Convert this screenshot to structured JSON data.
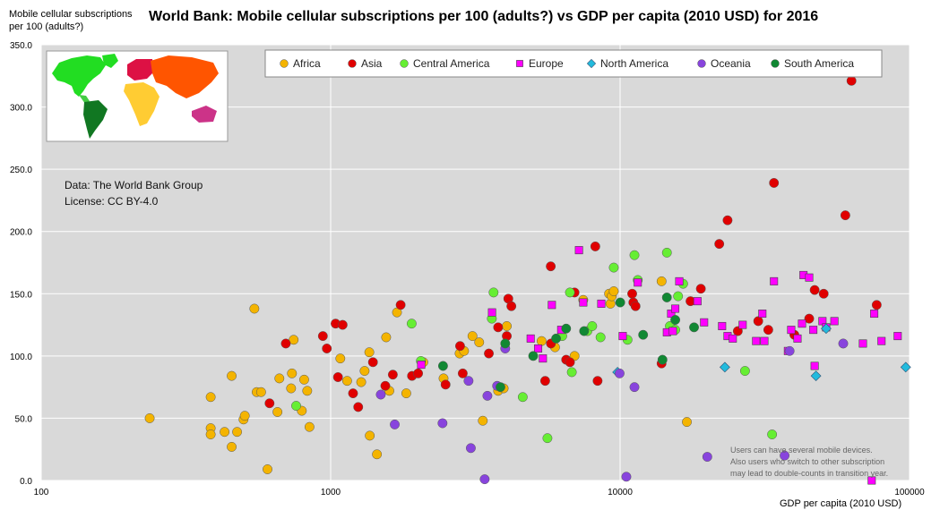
{
  "chart_data": {
    "type": "scatter",
    "title": "World Bank: Mobile cellular subscriptions per 100 (adults?) vs GDP per capita (2010 USD) for 2016",
    "ylabel_line1": "Mobile cellular subscriptions",
    "ylabel_line2": "per 100 (adults?)",
    "xlabel": "GDP per capita (2010 USD)",
    "xscale": "log",
    "xlim": [
      100,
      100000
    ],
    "ylim": [
      0,
      350
    ],
    "grid": true,
    "legend_placement": "top",
    "x_ticks": [
      {
        "value": 100,
        "label": "100"
      },
      {
        "value": 1000,
        "label": "1000"
      },
      {
        "value": 10000,
        "label": "10000"
      },
      {
        "value": 100000,
        "label": "100000"
      }
    ],
    "y_ticks": [
      {
        "value": 0,
        "label": "0.0"
      },
      {
        "value": 50,
        "label": "50.0"
      },
      {
        "value": 100,
        "label": "100.0"
      },
      {
        "value": 150,
        "label": "150.0"
      },
      {
        "value": 200,
        "label": "200.0"
      },
      {
        "value": 250,
        "label": "250.0"
      },
      {
        "value": 300,
        "label": "300.0"
      },
      {
        "value": 350,
        "label": "350.0"
      }
    ],
    "source_lines": [
      "Data: The World Bank Group",
      "License: CC BY-4.0"
    ],
    "note_lines": [
      "Users can have several mobile devices.",
      "Also users who switch to other subscription",
      "may lead to double-counts in transition year."
    ],
    "series": [
      {
        "name": "Africa",
        "color": "#f4b400",
        "marker": "circle",
        "points": [
          [
            237,
            50
          ],
          [
            385,
            67
          ],
          [
            385,
            42
          ],
          [
            385,
            37
          ],
          [
            430,
            39
          ],
          [
            455,
            84
          ],
          [
            455,
            27
          ],
          [
            475,
            39
          ],
          [
            500,
            49
          ],
          [
            505,
            52
          ],
          [
            545,
            138
          ],
          [
            555,
            71
          ],
          [
            575,
            71
          ],
          [
            605,
            9
          ],
          [
            655,
            55
          ],
          [
            665,
            82
          ],
          [
            730,
            74
          ],
          [
            735,
            86
          ],
          [
            745,
            113
          ],
          [
            795,
            56
          ],
          [
            810,
            81
          ],
          [
            830,
            72
          ],
          [
            845,
            43
          ],
          [
            1080,
            98
          ],
          [
            1140,
            80
          ],
          [
            1275,
            79
          ],
          [
            1310,
            88
          ],
          [
            1360,
            103
          ],
          [
            1365,
            36
          ],
          [
            1445,
            21
          ],
          [
            1555,
            115
          ],
          [
            1595,
            72
          ],
          [
            1695,
            135
          ],
          [
            1825,
            70
          ],
          [
            2090,
            95
          ],
          [
            2455,
            82
          ],
          [
            2790,
            102
          ],
          [
            2890,
            104
          ],
          [
            3090,
            116
          ],
          [
            3260,
            111
          ],
          [
            3355,
            48
          ],
          [
            3790,
            72
          ],
          [
            3960,
            74
          ],
          [
            4060,
            124
          ],
          [
            5355,
            112
          ],
          [
            5960,
            107
          ],
          [
            6960,
            100
          ],
          [
            7460,
            145
          ],
          [
            9160,
            150
          ],
          [
            9260,
            142
          ],
          [
            9360,
            148
          ],
          [
            9510,
            152
          ],
          [
            13910,
            160
          ],
          [
            17010,
            47
          ]
        ]
      },
      {
        "name": "Asia",
        "color": "#e00000",
        "marker": "circle",
        "points": [
          [
            615,
            62
          ],
          [
            700,
            110
          ],
          [
            940,
            116
          ],
          [
            970,
            106
          ],
          [
            1040,
            126
          ],
          [
            1060,
            83
          ],
          [
            1100,
            125
          ],
          [
            1195,
            70
          ],
          [
            1245,
            59
          ],
          [
            1400,
            95
          ],
          [
            1545,
            76
          ],
          [
            1640,
            85
          ],
          [
            1745,
            141
          ],
          [
            1910,
            84
          ],
          [
            2005,
            86
          ],
          [
            2495,
            77
          ],
          [
            2800,
            108
          ],
          [
            2860,
            86
          ],
          [
            3520,
            102
          ],
          [
            3790,
            123
          ],
          [
            4060,
            116
          ],
          [
            4110,
            146
          ],
          [
            4210,
            140
          ],
          [
            5510,
            80
          ],
          [
            5760,
            172
          ],
          [
            5770,
            110
          ],
          [
            6510,
            97
          ],
          [
            6710,
            95
          ],
          [
            6960,
            151
          ],
          [
            8210,
            188
          ],
          [
            8360,
            80
          ],
          [
            11010,
            150
          ],
          [
            11110,
            143
          ],
          [
            11310,
            140
          ],
          [
            13910,
            94
          ],
          [
            17510,
            144
          ],
          [
            19010,
            154
          ],
          [
            22010,
            190
          ],
          [
            23510,
            209
          ],
          [
            25510,
            120
          ],
          [
            30010,
            128
          ],
          [
            32510,
            121
          ],
          [
            34010,
            239
          ],
          [
            40010,
            117
          ],
          [
            45010,
            130
          ],
          [
            47010,
            153
          ],
          [
            50510,
            150
          ],
          [
            60010,
            213
          ],
          [
            63010,
            321
          ],
          [
            77010,
            141
          ]
        ]
      },
      {
        "name": "Central America",
        "color": "#66ee33",
        "marker": "circle",
        "points": [
          [
            760,
            60
          ],
          [
            1905,
            126
          ],
          [
            2050,
            96
          ],
          [
            3605,
            130
          ],
          [
            3655,
            151
          ],
          [
            4610,
            67
          ],
          [
            5610,
            34
          ],
          [
            6310,
            116
          ],
          [
            6710,
            151
          ],
          [
            6810,
            87
          ],
          [
            7710,
            120
          ],
          [
            8010,
            124
          ],
          [
            8560,
            115
          ],
          [
            9510,
            171
          ],
          [
            10610,
            113
          ],
          [
            11210,
            181
          ],
          [
            11510,
            161
          ],
          [
            14510,
            183
          ],
          [
            14860,
            124
          ],
          [
            15510,
            121
          ],
          [
            15860,
            148
          ],
          [
            16510,
            158
          ],
          [
            27010,
            88
          ],
          [
            33510,
            37
          ]
        ]
      },
      {
        "name": "Europe",
        "color": "#ff00ff",
        "marker": "square",
        "points": [
          [
            2055,
            93
          ],
          [
            3610,
            135
          ],
          [
            4910,
            114
          ],
          [
            5210,
            106
          ],
          [
            5410,
            98
          ],
          [
            5810,
            141
          ],
          [
            6260,
            121
          ],
          [
            7210,
            185
          ],
          [
            7460,
            143
          ],
          [
            8610,
            142
          ],
          [
            10210,
            116
          ],
          [
            11510,
            159
          ],
          [
            14510,
            119
          ],
          [
            15010,
            134
          ],
          [
            15210,
            120
          ],
          [
            15510,
            138
          ],
          [
            16010,
            160
          ],
          [
            18510,
            144
          ],
          [
            19510,
            127
          ],
          [
            22510,
            124
          ],
          [
            23510,
            116
          ],
          [
            24510,
            114
          ],
          [
            26510,
            125
          ],
          [
            29510,
            112
          ],
          [
            31010,
            134
          ],
          [
            31510,
            112
          ],
          [
            34010,
            160
          ],
          [
            38010,
            104
          ],
          [
            39010,
            121
          ],
          [
            41010,
            114
          ],
          [
            42510,
            126
          ],
          [
            43010,
            165
          ],
          [
            45010,
            163
          ],
          [
            46510,
            121
          ],
          [
            47010,
            92
          ],
          [
            50010,
            128
          ],
          [
            51510,
            123
          ],
          [
            55010,
            128
          ],
          [
            69010,
            110
          ],
          [
            74010,
            0
          ],
          [
            75510,
            134
          ],
          [
            80010,
            112
          ],
          [
            91010,
            116
          ]
        ]
      },
      {
        "name": "North America",
        "color": "#22bbdd",
        "marker": "diamond",
        "points": [
          [
            9800,
            87
          ],
          [
            23010,
            91
          ],
          [
            47510,
            84
          ],
          [
            51510,
            122
          ],
          [
            97010,
            91
          ]
        ]
      },
      {
        "name": "Oceania",
        "color": "#8844dd",
        "marker": "circle",
        "points": [
          [
            1490,
            69
          ],
          [
            1665,
            45
          ],
          [
            2435,
            46
          ],
          [
            2995,
            80
          ],
          [
            3050,
            26
          ],
          [
            3405,
            1
          ],
          [
            3480,
            68
          ],
          [
            3760,
            76
          ],
          [
            4010,
            106
          ],
          [
            9960,
            86
          ],
          [
            10510,
            3
          ],
          [
            11210,
            75
          ],
          [
            20010,
            19
          ],
          [
            37010,
            20
          ],
          [
            38510,
            104
          ],
          [
            59010,
            110
          ]
        ]
      },
      {
        "name": "South America",
        "color": "#118833",
        "marker": "circle",
        "points": [
          [
            2445,
            92
          ],
          [
            3860,
            75
          ],
          [
            4010,
            110
          ],
          [
            5010,
            100
          ],
          [
            6010,
            114
          ],
          [
            6510,
            122
          ],
          [
            7510,
            120
          ],
          [
            10010,
            143
          ],
          [
            12010,
            117
          ],
          [
            14010,
            97
          ],
          [
            14510,
            147
          ],
          [
            15510,
            129
          ],
          [
            18010,
            123
          ]
        ]
      }
    ]
  }
}
